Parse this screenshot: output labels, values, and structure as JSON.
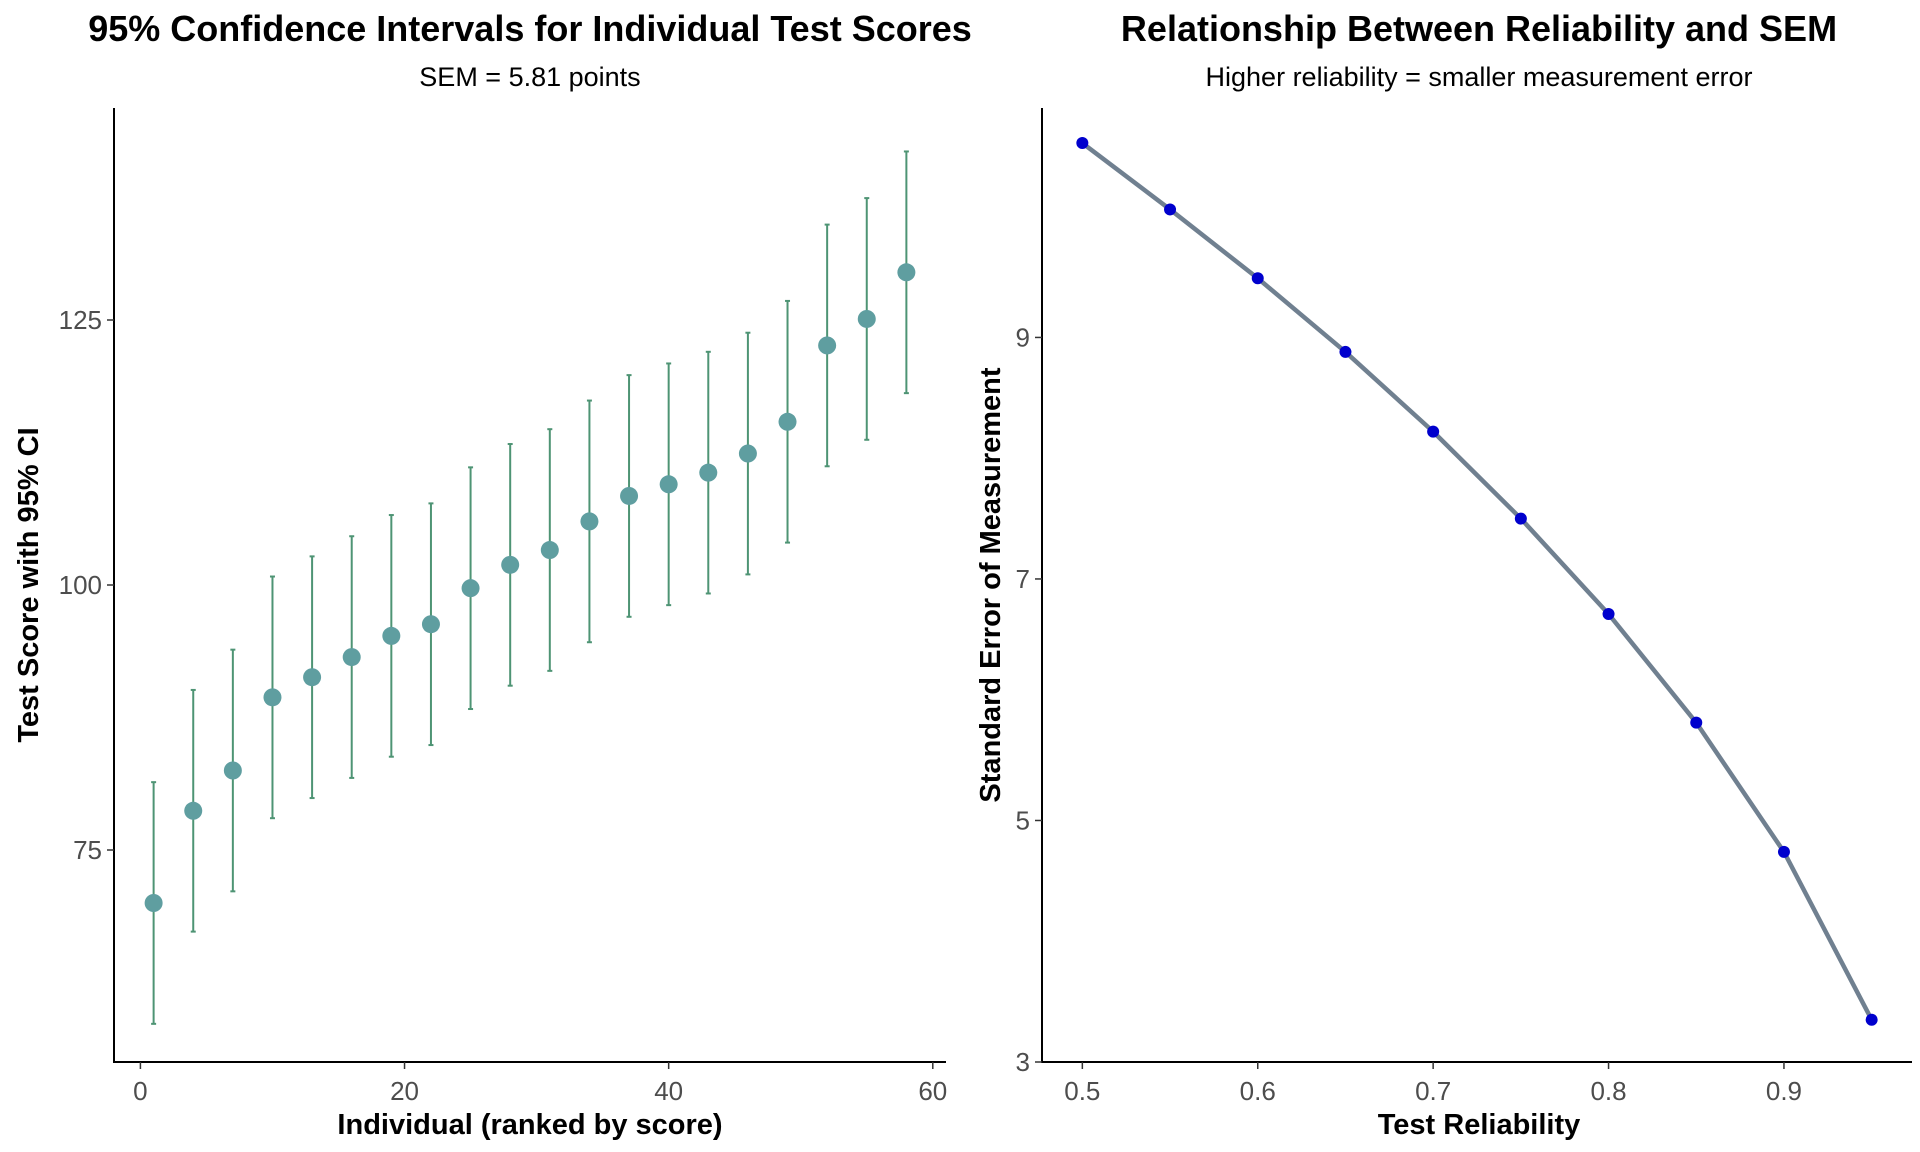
{
  "chart_data": [
    {
      "type": "scatter",
      "title": "95% Confidence Intervals for Individual Test Scores",
      "subtitle": "SEM = 5.81 points",
      "xlabel": "Individual (ranked by score)",
      "ylabel": "Test Score with 95% CI",
      "xlim": [
        -2,
        61
      ],
      "ylim": [
        55,
        145
      ],
      "xticks": [
        0,
        20,
        40,
        60
      ],
      "yticks": [
        75,
        100,
        125
      ],
      "grid": false,
      "colors": {
        "point": "#5f9ea0",
        "errorbar": "#4e9474"
      },
      "x": [
        1,
        4,
        7,
        10,
        13,
        16,
        19,
        22,
        25,
        28,
        31,
        34,
        37,
        40,
        43,
        46,
        49,
        52,
        55,
        58
      ],
      "y": [
        70.0,
        78.7,
        82.5,
        89.4,
        91.3,
        93.2,
        95.2,
        96.3,
        99.7,
        101.9,
        103.3,
        106.0,
        108.4,
        109.5,
        110.6,
        112.4,
        115.4,
        122.6,
        125.1,
        129.5
      ],
      "ci_lower": [
        58.6,
        67.3,
        71.1,
        78.0,
        79.9,
        81.8,
        83.8,
        84.9,
        88.3,
        90.5,
        91.9,
        94.6,
        97.0,
        98.1,
        99.2,
        101.0,
        104.0,
        111.2,
        113.7,
        118.1
      ],
      "ci_upper": [
        81.4,
        90.1,
        93.9,
        100.8,
        102.7,
        104.6,
        106.6,
        107.7,
        111.1,
        113.3,
        114.7,
        117.4,
        119.8,
        120.9,
        122.0,
        123.8,
        126.8,
        134.0,
        136.5,
        140.9
      ]
    },
    {
      "type": "line",
      "title": "Relationship Between Reliability and SEM",
      "subtitle": "Higher reliability = smaller measurement error",
      "xlabel": "Test Reliability",
      "ylabel": "Standard Error of Measurement",
      "xlim": [
        0.477,
        0.973
      ],
      "ylim": [
        3.0,
        10.9
      ],
      "xticks": [
        0.5,
        0.6,
        0.7,
        0.8,
        0.9
      ],
      "yticks": [
        3,
        5,
        7,
        9
      ],
      "grid": false,
      "colors": {
        "line": "#708090",
        "point": "#0000cd"
      },
      "x": [
        0.5,
        0.55,
        0.6,
        0.65,
        0.7,
        0.75,
        0.8,
        0.85,
        0.9,
        0.95
      ],
      "y": [
        10.61,
        10.06,
        9.49,
        8.88,
        8.22,
        7.5,
        6.71,
        5.81,
        4.74,
        3.35
      ]
    }
  ]
}
